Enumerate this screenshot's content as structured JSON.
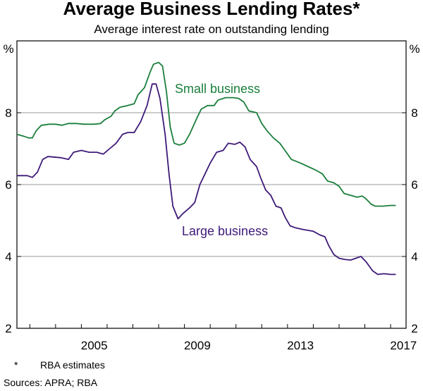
{
  "chart_data": {
    "type": "line",
    "title": "Average Business Lending Rates*",
    "subtitle": "Average interest rate on outstanding lending",
    "y_unit_left": "%",
    "y_unit_right": "%",
    "ylim": [
      2,
      10
    ],
    "y_ticks": [
      2,
      4,
      6,
      8
    ],
    "x_ticks": [
      "2005",
      "2009",
      "2013",
      "2017"
    ],
    "xlim": [
      2002.5,
      2017.6
    ],
    "grid": "horizontal",
    "footnote_marker": "*",
    "footnote_text": "RBA estimates",
    "source": "Sources: APRA; RBA",
    "series": [
      {
        "name": "Small business",
        "color": "#1a7f3c",
        "points": [
          [
            2002.5,
            7.4
          ],
          [
            2002.75,
            7.35
          ],
          [
            2002.95,
            7.3
          ],
          [
            2003.1,
            7.3
          ],
          [
            2003.25,
            7.5
          ],
          [
            2003.45,
            7.65
          ],
          [
            2003.75,
            7.68
          ],
          [
            2004.0,
            7.68
          ],
          [
            2004.25,
            7.65
          ],
          [
            2004.5,
            7.7
          ],
          [
            2004.8,
            7.7
          ],
          [
            2005.1,
            7.68
          ],
          [
            2005.5,
            7.68
          ],
          [
            2005.75,
            7.7
          ],
          [
            2005.9,
            7.8
          ],
          [
            2006.15,
            7.9
          ],
          [
            2006.3,
            8.05
          ],
          [
            2006.5,
            8.15
          ],
          [
            2006.8,
            8.2
          ],
          [
            2007.05,
            8.25
          ],
          [
            2007.2,
            8.5
          ],
          [
            2007.45,
            8.7
          ],
          [
            2007.65,
            9.1
          ],
          [
            2007.8,
            9.35
          ],
          [
            2008.0,
            9.4
          ],
          [
            2008.15,
            9.3
          ],
          [
            2008.3,
            8.6
          ],
          [
            2008.45,
            7.6
          ],
          [
            2008.6,
            7.15
          ],
          [
            2008.8,
            7.1
          ],
          [
            2009.0,
            7.15
          ],
          [
            2009.2,
            7.4
          ],
          [
            2009.45,
            7.8
          ],
          [
            2009.65,
            8.1
          ],
          [
            2009.9,
            8.2
          ],
          [
            2010.15,
            8.2
          ],
          [
            2010.3,
            8.35
          ],
          [
            2010.6,
            8.42
          ],
          [
            2010.9,
            8.42
          ],
          [
            2011.1,
            8.4
          ],
          [
            2011.3,
            8.3
          ],
          [
            2011.5,
            8.05
          ],
          [
            2011.8,
            8.0
          ],
          [
            2012.0,
            7.7
          ],
          [
            2012.2,
            7.5
          ],
          [
            2012.45,
            7.3
          ],
          [
            2012.7,
            7.15
          ],
          [
            2012.9,
            6.95
          ],
          [
            2013.15,
            6.7
          ],
          [
            2013.5,
            6.6
          ],
          [
            2013.8,
            6.5
          ],
          [
            2014.1,
            6.4
          ],
          [
            2014.35,
            6.3
          ],
          [
            2014.55,
            6.1
          ],
          [
            2014.8,
            6.05
          ],
          [
            2015.0,
            5.95
          ],
          [
            2015.2,
            5.75
          ],
          [
            2015.45,
            5.7
          ],
          [
            2015.7,
            5.65
          ],
          [
            2015.9,
            5.68
          ],
          [
            2016.05,
            5.6
          ],
          [
            2016.25,
            5.45
          ],
          [
            2016.4,
            5.4
          ],
          [
            2016.7,
            5.4
          ],
          [
            2017.0,
            5.42
          ],
          [
            2017.2,
            5.42
          ]
        ]
      },
      {
        "name": "Large business",
        "color": "#3d1a78",
        "points": [
          [
            2002.5,
            6.25
          ],
          [
            2002.9,
            6.25
          ],
          [
            2003.1,
            6.2
          ],
          [
            2003.3,
            6.35
          ],
          [
            2003.5,
            6.7
          ],
          [
            2003.7,
            6.78
          ],
          [
            2004.2,
            6.75
          ],
          [
            2004.5,
            6.7
          ],
          [
            2004.7,
            6.9
          ],
          [
            2005.0,
            6.95
          ],
          [
            2005.3,
            6.9
          ],
          [
            2005.6,
            6.9
          ],
          [
            2005.85,
            6.85
          ],
          [
            2006.1,
            7.0
          ],
          [
            2006.35,
            7.15
          ],
          [
            2006.6,
            7.4
          ],
          [
            2006.8,
            7.45
          ],
          [
            2007.05,
            7.45
          ],
          [
            2007.3,
            7.75
          ],
          [
            2007.55,
            8.2
          ],
          [
            2007.75,
            8.8
          ],
          [
            2007.9,
            8.8
          ],
          [
            2008.05,
            8.4
          ],
          [
            2008.25,
            7.4
          ],
          [
            2008.4,
            6.3
          ],
          [
            2008.55,
            5.4
          ],
          [
            2008.75,
            5.05
          ],
          [
            2008.95,
            5.2
          ],
          [
            2009.2,
            5.35
          ],
          [
            2009.4,
            5.5
          ],
          [
            2009.6,
            6.0
          ],
          [
            2009.8,
            6.3
          ],
          [
            2010.0,
            6.6
          ],
          [
            2010.25,
            6.9
          ],
          [
            2010.5,
            6.95
          ],
          [
            2010.7,
            7.15
          ],
          [
            2010.95,
            7.12
          ],
          [
            2011.15,
            7.18
          ],
          [
            2011.35,
            7.05
          ],
          [
            2011.55,
            6.7
          ],
          [
            2011.8,
            6.5
          ],
          [
            2011.95,
            6.2
          ],
          [
            2012.15,
            5.85
          ],
          [
            2012.35,
            5.7
          ],
          [
            2012.55,
            5.4
          ],
          [
            2012.75,
            5.35
          ],
          [
            2012.9,
            5.1
          ],
          [
            2013.1,
            4.85
          ],
          [
            2013.3,
            4.8
          ],
          [
            2013.6,
            4.75
          ],
          [
            2014.0,
            4.7
          ],
          [
            2014.25,
            4.6
          ],
          [
            2014.45,
            4.55
          ],
          [
            2014.6,
            4.3
          ],
          [
            2014.8,
            4.05
          ],
          [
            2015.0,
            3.95
          ],
          [
            2015.2,
            3.92
          ],
          [
            2015.45,
            3.9
          ],
          [
            2015.65,
            3.95
          ],
          [
            2015.85,
            4.0
          ],
          [
            2016.05,
            3.85
          ],
          [
            2016.3,
            3.6
          ],
          [
            2016.5,
            3.5
          ],
          [
            2016.75,
            3.52
          ],
          [
            2017.0,
            3.5
          ],
          [
            2017.2,
            3.5
          ]
        ]
      }
    ]
  }
}
